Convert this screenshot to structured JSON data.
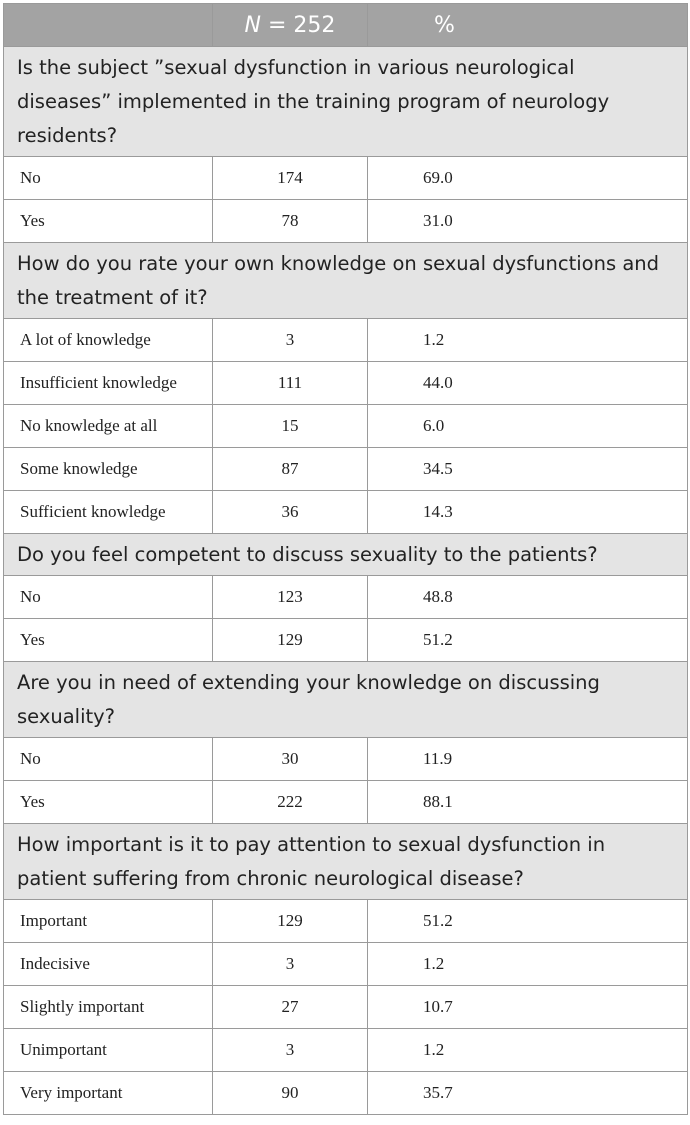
{
  "header": {
    "n_symbol": "N",
    "n_rest": " = 252",
    "pct": "%"
  },
  "sections": [
    {
      "question": "Is the subject ”sexual dysfunction in various neurological diseases” implemented in the training program of neurology residents?",
      "rows": [
        {
          "label": "No",
          "n": "174",
          "pct": "69.0"
        },
        {
          "label": "Yes",
          "n": "78",
          "pct": "31.0"
        }
      ]
    },
    {
      "question": "How do you rate your own knowledge on sexual dysfunctions and the treatment of it?",
      "rows": [
        {
          "label": "A lot of knowledge",
          "n": "3",
          "pct": "1.2"
        },
        {
          "label": "Insufficient knowledge",
          "n": "111",
          "pct": "44.0"
        },
        {
          "label": "No knowledge at all",
          "n": "15",
          "pct": "6.0"
        },
        {
          "label": "Some knowledge",
          "n": "87",
          "pct": "34.5"
        },
        {
          "label": "Sufficient knowledge",
          "n": "36",
          "pct": "14.3"
        }
      ]
    },
    {
      "question": "Do you feel competent to discuss sexuality to the patients?",
      "rows": [
        {
          "label": "No",
          "n": "123",
          "pct": "48.8"
        },
        {
          "label": "Yes",
          "n": "129",
          "pct": "51.2"
        }
      ]
    },
    {
      "question": "Are you in need of extending your knowledge on discussing sexuality?",
      "rows": [
        {
          "label": "No",
          "n": "30",
          "pct": "11.9"
        },
        {
          "label": "Yes",
          "n": "222",
          "pct": "88.1"
        }
      ]
    },
    {
      "question": "How important is it to pay attention to sexual dysfunction in patient suffering from chronic neurological disease?",
      "rows": [
        {
          "label": "Important",
          "n": "129",
          "pct": "51.2"
        },
        {
          "label": "Indecisive",
          "n": "3",
          "pct": "1.2"
        },
        {
          "label": "Slightly important",
          "n": "27",
          "pct": "10.7"
        },
        {
          "label": "Unimportant",
          "n": "3",
          "pct": "1.2"
        },
        {
          "label": "Very important",
          "n": "90",
          "pct": "35.7"
        }
      ]
    }
  ]
}
